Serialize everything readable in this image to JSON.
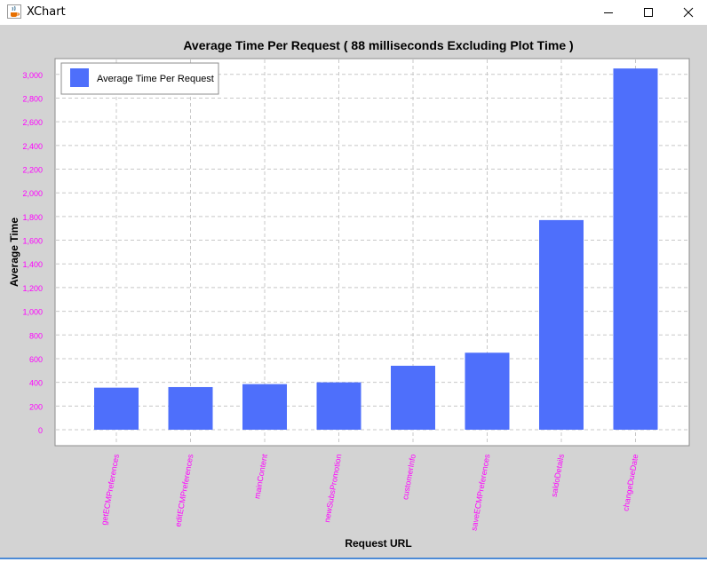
{
  "window": {
    "title": "XChart",
    "icon": "java-cup-icon",
    "controls": [
      "minimize-icon",
      "maximize-icon",
      "close-icon"
    ]
  },
  "colors": {
    "bar": "#4e6ffb",
    "panel_background": "#d3d3d3",
    "plot_background": "#ffffff",
    "tick_label": "#ff00ff",
    "gridline": "#c8c8c8",
    "text": "#000000"
  },
  "chart_data": {
    "type": "bar",
    "title": "Average Time Per Request ( 88 milliseconds Excluding Plot Time )",
    "xlabel": "Request URL",
    "ylabel": "Average Time",
    "legend": {
      "entries": [
        "Average Time Per Request"
      ],
      "position": "top-left"
    },
    "categories": [
      "getECMPreferences",
      "editECMPreferences",
      "mainContent",
      "newSubsPromotion",
      "customerInfo",
      "saveECMPreferences",
      "saldoDetails",
      "changeDueDate"
    ],
    "series": [
      {
        "name": "Average Time Per Request",
        "values": [
          355,
          360,
          385,
          400,
          540,
          650,
          1770,
          3050
        ]
      }
    ],
    "yticks": [
      "0",
      "200",
      "400",
      "600",
      "800",
      "1,000",
      "1,200",
      "1,400",
      "1,600",
      "1,800",
      "2,000",
      "2,200",
      "2,400",
      "2,600",
      "2,800",
      "3,000"
    ],
    "ylim": [
      0,
      3000
    ],
    "grid": true
  }
}
